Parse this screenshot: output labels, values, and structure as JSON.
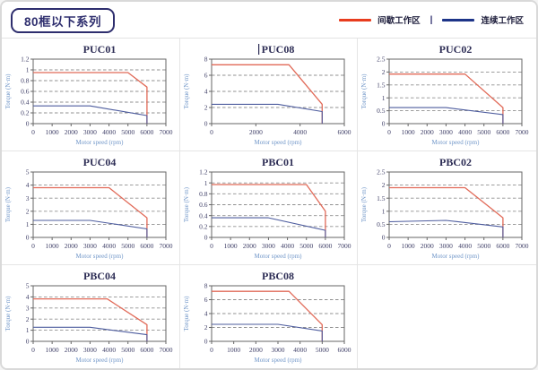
{
  "header": {
    "series_title": "80框以下系列"
  },
  "legend": {
    "items": [
      {
        "label": "间歇工作区",
        "color": "#e83c1e"
      },
      {
        "label": "连续工作区",
        "color": "#1d3488"
      }
    ],
    "separator": "|"
  },
  "colors": {
    "intermittent_curve": "#e16a58",
    "continuous_curve": "#4d5c9e",
    "title_text": "#2d2d55",
    "tick_text": "#404068",
    "axis_label_text": "#7096c8",
    "grid_line": "#909090",
    "plot_border": "#666666"
  },
  "chart_data": [
    {
      "type": "line",
      "title": "PUC01",
      "xlabel": "Motor speed (rpm)",
      "ylabel": "Torque (N·m)",
      "xlim": [
        0,
        7000
      ],
      "ylim": [
        0,
        1.2
      ],
      "xticks": [
        0,
        1000,
        2000,
        3000,
        4000,
        5000,
        6000,
        7000
      ],
      "yticks": [
        0,
        0.2,
        0.4,
        0.6,
        0.8,
        1,
        1.2
      ],
      "series": [
        {
          "name": "间歇工作区",
          "points": [
            [
              0,
              0.95
            ],
            [
              5000,
              0.95
            ],
            [
              6000,
              0.68
            ],
            [
              6000,
              0
            ]
          ]
        },
        {
          "name": "连续工作区",
          "points": [
            [
              0,
              0.33
            ],
            [
              3000,
              0.33
            ],
            [
              6000,
              0.15
            ],
            [
              6000,
              0
            ]
          ]
        }
      ]
    },
    {
      "type": "line",
      "title": "PUC08",
      "title_cursor": true,
      "xlabel": "Motor speed (rpm)",
      "ylabel": "Torque (N·m)",
      "xlim": [
        0,
        6000
      ],
      "ylim": [
        0,
        8
      ],
      "xticks": [
        0,
        2000,
        4000,
        6000
      ],
      "yticks": [
        0,
        2,
        4,
        6,
        8
      ],
      "series": [
        {
          "name": "间歇工作区",
          "points": [
            [
              0,
              7.3
            ],
            [
              3500,
              7.3
            ],
            [
              5000,
              2.4
            ],
            [
              5000,
              0
            ]
          ]
        },
        {
          "name": "连续工作区",
          "points": [
            [
              0,
              2.4
            ],
            [
              3000,
              2.4
            ],
            [
              5000,
              1.5
            ],
            [
              5000,
              0
            ]
          ]
        }
      ]
    },
    {
      "type": "line",
      "title": "PUC02",
      "xlabel": "Motor speed (rpm)",
      "ylabel": "Torque (N·m)",
      "xlim": [
        0,
        7000
      ],
      "ylim": [
        0,
        2.5
      ],
      "xticks": [
        0,
        1000,
        2000,
        3000,
        4000,
        5000,
        6000,
        7000
      ],
      "yticks": [
        0,
        0.5,
        1,
        1.5,
        2,
        2.5
      ],
      "series": [
        {
          "name": "间歇工作区",
          "points": [
            [
              0,
              1.92
            ],
            [
              4000,
              1.92
            ],
            [
              6000,
              0.62
            ],
            [
              6000,
              0
            ]
          ]
        },
        {
          "name": "连续工作区",
          "points": [
            [
              0,
              0.62
            ],
            [
              3000,
              0.62
            ],
            [
              6000,
              0.35
            ],
            [
              6000,
              0
            ]
          ]
        }
      ]
    },
    {
      "type": "line",
      "title": "PUC04",
      "xlabel": "Motor speed (rpm)",
      "ylabel": "Torque (N·m)",
      "xlim": [
        0,
        7000
      ],
      "ylim": [
        0,
        5
      ],
      "xticks": [
        0,
        1000,
        2000,
        3000,
        4000,
        5000,
        6000,
        7000
      ],
      "yticks": [
        0,
        1,
        2,
        3,
        4,
        5
      ],
      "series": [
        {
          "name": "间歇工作区",
          "points": [
            [
              0,
              3.8
            ],
            [
              4000,
              3.8
            ],
            [
              6000,
              1.5
            ],
            [
              6000,
              0
            ]
          ]
        },
        {
          "name": "连续工作区",
          "points": [
            [
              0,
              1.3
            ],
            [
              3000,
              1.3
            ],
            [
              6000,
              0.65
            ],
            [
              6000,
              0
            ]
          ]
        }
      ]
    },
    {
      "type": "line",
      "title": "PBC01",
      "xlabel": "Motor speed (rpm)",
      "ylabel": "Torque (N·m)",
      "xlim": [
        0,
        7000
      ],
      "ylim": [
        0,
        1.2
      ],
      "xticks": [
        0,
        1000,
        2000,
        3000,
        4000,
        5000,
        6000,
        7000
      ],
      "yticks": [
        0,
        0.2,
        0.4,
        0.6,
        0.8,
        1,
        1.2
      ],
      "series": [
        {
          "name": "间歇工作区",
          "points": [
            [
              0,
              0.97
            ],
            [
              5000,
              0.97
            ],
            [
              6000,
              0.48
            ],
            [
              6000,
              0
            ]
          ]
        },
        {
          "name": "连续工作区",
          "points": [
            [
              0,
              0.36
            ],
            [
              3000,
              0.36
            ],
            [
              6000,
              0.13
            ],
            [
              6000,
              0
            ]
          ]
        }
      ]
    },
    {
      "type": "line",
      "title": "PBC02",
      "xlabel": "Motor speed (rpm)",
      "ylabel": "Torque (N·m)",
      "xlim": [
        0,
        7000
      ],
      "ylim": [
        0,
        2.5
      ],
      "xticks": [
        0,
        1000,
        2000,
        3000,
        4000,
        5000,
        6000,
        7000
      ],
      "yticks": [
        0,
        0.5,
        1,
        1.5,
        2,
        2.5
      ],
      "series": [
        {
          "name": "间歇工作区",
          "points": [
            [
              0,
              1.9
            ],
            [
              4000,
              1.9
            ],
            [
              6000,
              0.75
            ],
            [
              6000,
              0
            ]
          ]
        },
        {
          "name": "连续工作区",
          "points": [
            [
              0,
              0.6
            ],
            [
              3000,
              0.65
            ],
            [
              6000,
              0.4
            ],
            [
              6000,
              0
            ]
          ]
        }
      ]
    },
    {
      "type": "line",
      "title": "PBC04",
      "xlabel": "Motor speed (rpm)",
      "ylabel": "Torque (N·m)",
      "xlim": [
        0,
        7000
      ],
      "ylim": [
        0,
        5
      ],
      "xticks": [
        0,
        1000,
        2000,
        3000,
        4000,
        5000,
        6000,
        7000
      ],
      "yticks": [
        0,
        1,
        2,
        3,
        4,
        5
      ],
      "series": [
        {
          "name": "间歇工作区",
          "points": [
            [
              0,
              3.82
            ],
            [
              3900,
              3.82
            ],
            [
              6000,
              1.5
            ],
            [
              6000,
              0
            ]
          ]
        },
        {
          "name": "连续工作区",
          "points": [
            [
              0,
              1.27
            ],
            [
              3000,
              1.27
            ],
            [
              6000,
              0.6
            ],
            [
              6000,
              0
            ]
          ]
        }
      ]
    },
    {
      "type": "line",
      "title": "PBC08",
      "xlabel": "Motor speed (rpm)",
      "ylabel": "Torque (N·m)",
      "xlim": [
        0,
        6000
      ],
      "ylim": [
        0,
        8
      ],
      "xticks": [
        0,
        1000,
        2000,
        3000,
        4000,
        5000,
        6000
      ],
      "yticks": [
        0,
        2,
        4,
        6,
        8
      ],
      "series": [
        {
          "name": "间歇工作区",
          "points": [
            [
              0,
              7.2
            ],
            [
              3500,
              7.2
            ],
            [
              5000,
              2.4
            ],
            [
              5000,
              0
            ]
          ]
        },
        {
          "name": "连续工作区",
          "points": [
            [
              0,
              2.45
            ],
            [
              3000,
              2.45
            ],
            [
              5000,
              1.5
            ],
            [
              5000,
              0
            ]
          ]
        }
      ]
    }
  ]
}
